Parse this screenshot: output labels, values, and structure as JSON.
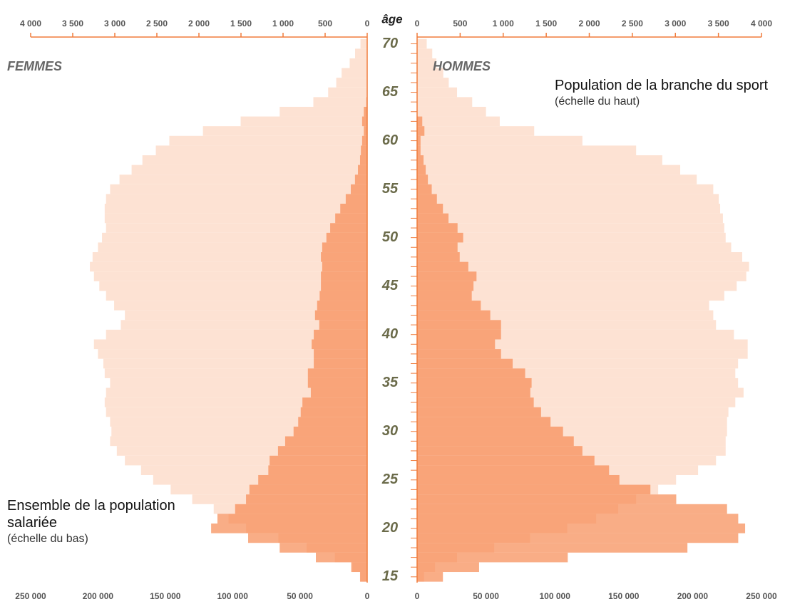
{
  "chart_data": {
    "type": "pyramid",
    "y_label": "âge",
    "y": [
      15,
      16,
      17,
      18,
      19,
      20,
      21,
      22,
      23,
      24,
      25,
      26,
      27,
      28,
      29,
      30,
      31,
      32,
      33,
      34,
      35,
      36,
      37,
      38,
      39,
      40,
      41,
      42,
      43,
      44,
      45,
      46,
      47,
      48,
      49,
      50,
      51,
      52,
      53,
      54,
      55,
      56,
      57,
      58,
      59,
      60,
      61,
      62,
      63,
      64,
      65,
      66,
      67,
      68,
      69,
      70
    ],
    "ylim": [
      14.4,
      70.7
    ],
    "yticks": [
      15,
      20,
      25,
      30,
      35,
      40,
      45,
      50,
      55,
      60,
      65,
      70
    ],
    "top_axis": {
      "xlim": [
        0,
        4000
      ],
      "xticks": [
        0,
        500,
        {
          "value": 1000,
          "label": "1 000"
        },
        {
          "value": 1500,
          "label": "1 500"
        },
        {
          "value": 2000,
          "label": "2 000"
        },
        {
          "value": 2500,
          "label": "2 500"
        },
        {
          "value": 3000,
          "label": "3 000"
        },
        {
          "value": 3500,
          "label": "3 500"
        },
        {
          "value": 4000,
          "label": "4 000"
        }
      ],
      "color": "#f07c3c"
    },
    "bottom_axis": {
      "xlim": [
        0,
        250000
      ],
      "xticks": [
        0,
        {
          "value": 50000,
          "label": "50 000"
        },
        {
          "value": 100000,
          "label": "100 000"
        },
        {
          "value": 150000,
          "label": "150 000"
        },
        {
          "value": 200000,
          "label": "200 000"
        },
        {
          "value": 250000,
          "label": "250 000"
        }
      ]
    },
    "series": [
      {
        "name": "Ensemble de la population salariée",
        "note": "(échelle du bas)",
        "axis": "bottom_axis",
        "color": "#fde2d3",
        "opacity": 1
      },
      {
        "name": "Population de la branche du sport",
        "note": "(échelle du haut)",
        "axis": "top_axis",
        "color": "#f68a52",
        "opacity": 0.7
      }
    ],
    "sides": [
      {
        "name": "FEMMES",
        "direction": "left",
        "values": [
          [
            5000,
            11000,
            24000,
            45000,
            66000,
            90000,
            103000,
            114000,
            130000,
            146000,
            159000,
            168000,
            180000,
            186000,
            191000,
            190000,
            191000,
            194000,
            195000,
            194000,
            191000,
            195000,
            196000,
            200000,
            203000,
            194000,
            183000,
            180000,
            188000,
            194000,
            199000,
            203000,
            206000,
            204000,
            200000,
            197000,
            194000,
            195000,
            195000,
            194000,
            191000,
            184000,
            175000,
            167000,
            157000,
            147000,
            122000,
            94000,
            65000,
            40000,
            29000,
            23000,
            19000,
            13000,
            9000,
            5000
          ],
          [
            85,
            190,
            610,
            1040,
            1415,
            1855,
            1780,
            1570,
            1440,
            1400,
            1295,
            1175,
            1160,
            1060,
            975,
            875,
            820,
            790,
            770,
            670,
            705,
            705,
            635,
            635,
            660,
            635,
            570,
            620,
            595,
            565,
            550,
            550,
            535,
            550,
            535,
            485,
            440,
            380,
            320,
            255,
            195,
            145,
            110,
            85,
            75,
            60,
            40,
            60,
            40,
            10,
            0,
            0,
            0,
            0,
            0,
            0
          ]
        ]
      },
      {
        "name": "HOMMES",
        "direction": "right",
        "values": [
          [
            5000,
            13000,
            29000,
            56000,
            82000,
            109000,
            130000,
            146000,
            159000,
            175000,
            188000,
            204000,
            217000,
            224000,
            224000,
            225000,
            225000,
            226000,
            231000,
            237000,
            233000,
            231000,
            233000,
            240000,
            240000,
            230000,
            217000,
            215000,
            212000,
            223000,
            232000,
            239000,
            241000,
            236000,
            228000,
            224000,
            223000,
            222000,
            220000,
            219000,
            215000,
            203000,
            191000,
            178000,
            159000,
            120000,
            85000,
            60000,
            50000,
            40000,
            29000,
            23000,
            19000,
            14000,
            11000,
            7000
          ],
          [
            300,
            720,
            1750,
            3140,
            3730,
            3810,
            3730,
            3600,
            3010,
            2710,
            2350,
            2230,
            2060,
            1920,
            1820,
            1695,
            1550,
            1440,
            1355,
            1315,
            1330,
            1255,
            1110,
            975,
            905,
            975,
            975,
            850,
            740,
            635,
            655,
            690,
            595,
            495,
            470,
            535,
            470,
            365,
            300,
            230,
            170,
            125,
            100,
            75,
            40,
            40,
            85,
            60,
            0,
            0,
            0,
            0,
            0,
            0,
            0,
            0
          ]
        ]
      }
    ]
  }
}
